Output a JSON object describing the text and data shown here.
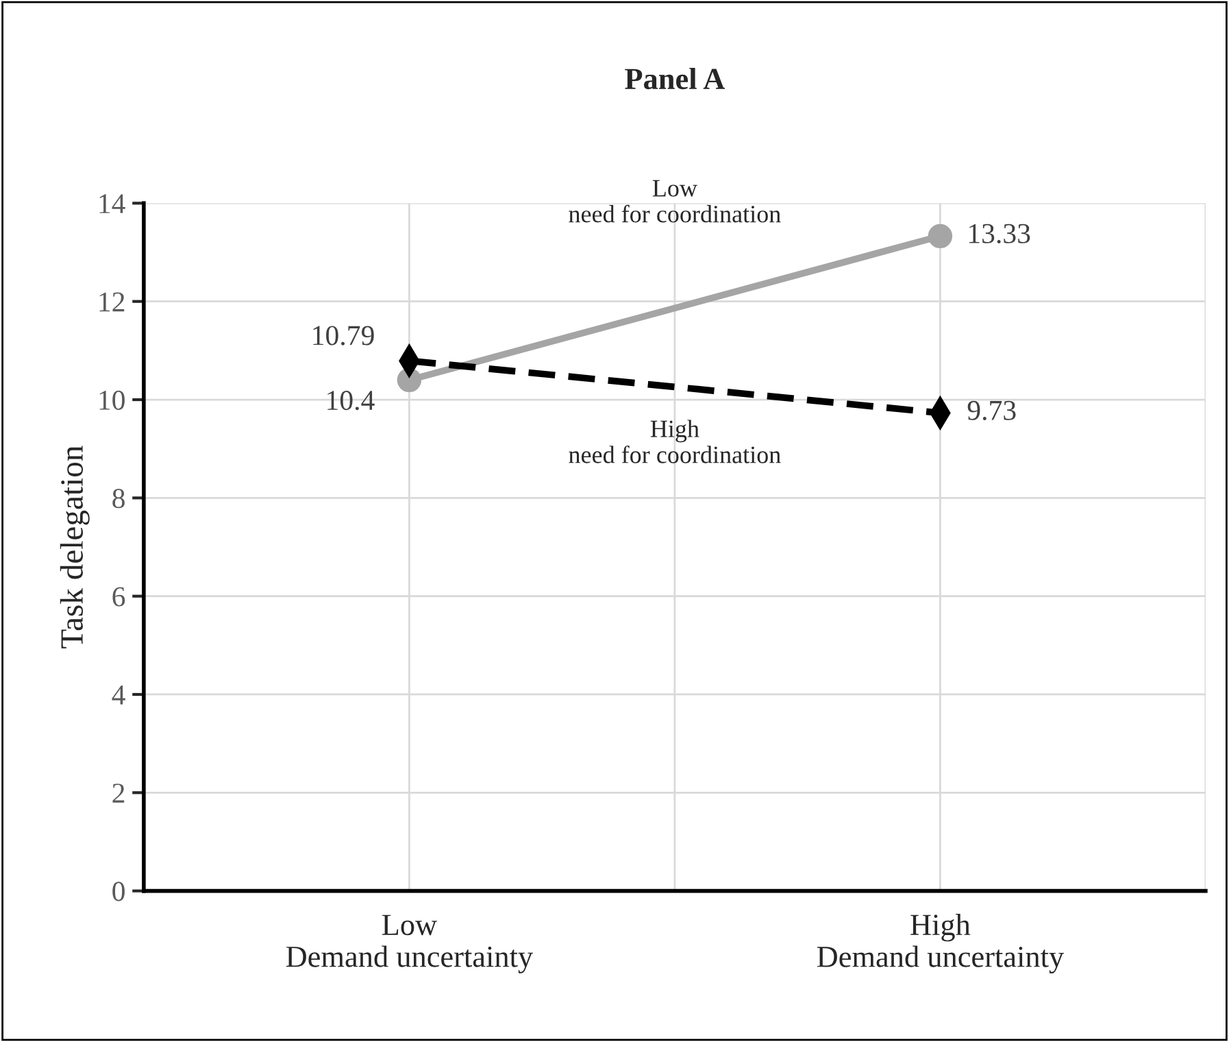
{
  "chart_data": {
    "type": "line",
    "title": "Panel A",
    "ylabel": "Task delegation",
    "categories": [
      "Low\nDemand uncertainty",
      "High\nDemand uncertainty"
    ],
    "series": [
      {
        "name": "Low\nneed for coordination",
        "color": "#a5a5a5",
        "values": [
          10.4,
          13.33
        ],
        "marker": "circle",
        "line_style": "solid"
      },
      {
        "name": "High\nneed for coordination",
        "color": "#000000",
        "values": [
          10.79,
          9.73
        ],
        "marker": "diamond",
        "line_style": "dashed"
      }
    ],
    "ylim": [
      0,
      14
    ],
    "yticks": [
      0,
      2,
      4,
      6,
      8,
      10,
      12,
      14
    ],
    "grid": true,
    "data_labels": true,
    "legend": false
  }
}
